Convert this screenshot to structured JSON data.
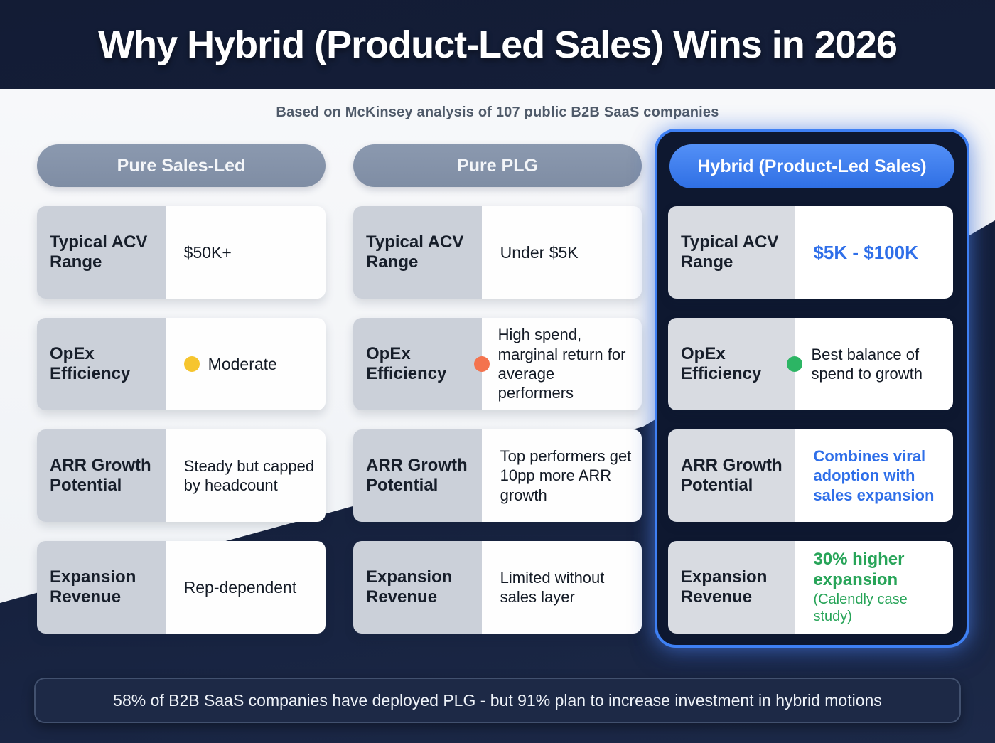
{
  "page": {
    "title": "Why Hybrid (Product-Led Sales) Wins in 2026",
    "subtitle": "Based on McKinsey analysis of 107 public B2B SaaS companies",
    "footer": "58% of B2B SaaS companies have deployed PLG - but 91% plan to increase investment in hybrid motions"
  },
  "colors": {
    "background_dark_navy": "#141e38",
    "background_light": "#f1f3f7",
    "column_pill_gray": "#8695ad",
    "card_label_gray": "#cbd0d9",
    "card_label_gray_hybrid": "#d8dbe1",
    "card_value_white": "#fefefe",
    "hybrid_panel_bg": "#0e1830",
    "hybrid_border_blue": "#3e80f4",
    "hybrid_pill_blue": "#3f80f2",
    "accent_blue_text": "#2f6fe9",
    "accent_green_text": "#27a458",
    "dot_yellow": "#f6c52e",
    "dot_orange": "#f4734e",
    "dot_green": "#2cb564",
    "footer_bg": "#1d2946",
    "footer_border": "#42516f"
  },
  "columns": [
    {
      "header": "Pure Sales-Led",
      "highlighted": false,
      "rows": [
        {
          "label": "Typical ACV Range",
          "value": "$50K+"
        },
        {
          "label": "OpEx Efficiency",
          "value": "Moderate",
          "dot": "yellow",
          "dot_color": "#f6c52e"
        },
        {
          "label": "ARR Growth Potential",
          "value": "Steady but capped by headcount"
        },
        {
          "label": "Expansion Revenue",
          "value": "Rep-dependent"
        }
      ]
    },
    {
      "header": "Pure PLG",
      "highlighted": false,
      "rows": [
        {
          "label": "Typical ACV Range",
          "value": "Under $5K"
        },
        {
          "label": "OpEx Efficiency",
          "value": "High spend, marginal return for average performers",
          "dot": "orange",
          "dot_color": "#f4734e"
        },
        {
          "label": "ARR Growth Potential",
          "value": "Top performers get 10pp more ARR growth"
        },
        {
          "label": "Expansion Revenue",
          "value": "Limited without sales layer"
        }
      ]
    },
    {
      "header": "Hybrid (Product-Led Sales)",
      "highlighted": true,
      "rows": [
        {
          "label": "Typical ACV Range",
          "value": "$5K - $100K",
          "value_color": "#2f6fe9"
        },
        {
          "label": "OpEx Efficiency",
          "value": "Best balance of spend to growth",
          "dot": "green",
          "dot_color": "#2cb564"
        },
        {
          "label": "ARR Growth Potential",
          "value": "Combines viral adoption with sales expansion",
          "value_color": "#2f6fe9"
        },
        {
          "label": "Expansion Revenue",
          "value": "30% higher expansion",
          "note": "(Calendly case study)",
          "value_color": "#27a458"
        }
      ]
    }
  ]
}
